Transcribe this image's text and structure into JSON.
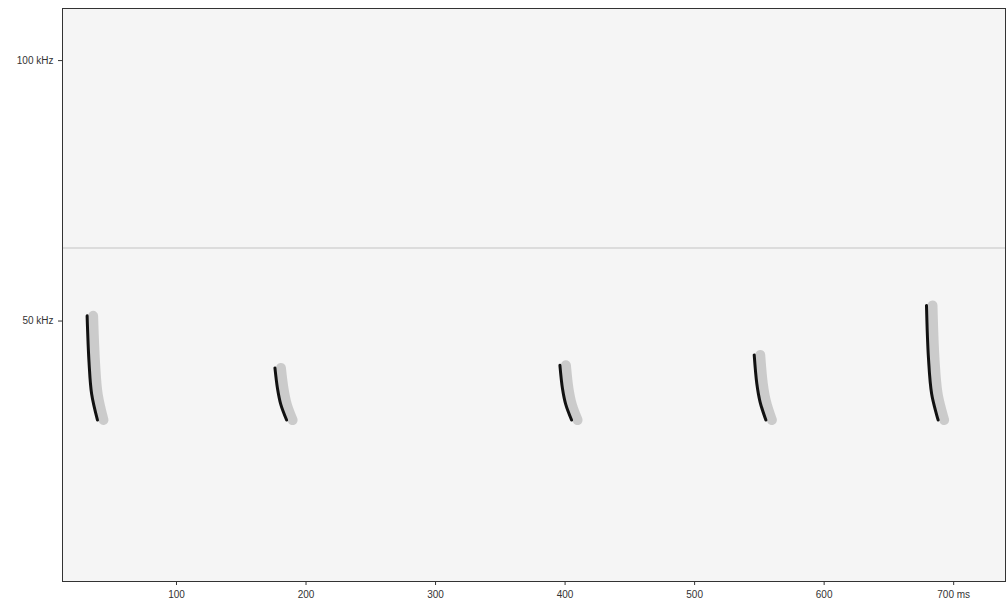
{
  "chart_data": {
    "type": "spectrogram",
    "xlim": [
      12,
      740
    ],
    "ylim": [
      0,
      110
    ],
    "xticks": [
      100,
      200,
      300,
      400,
      500,
      600,
      {
        "value": 700,
        "label": "700 ms"
      }
    ],
    "yticks": [
      {
        "value": 50,
        "label": "50 kHz"
      },
      {
        "value": 100,
        "label": "100 kHz"
      }
    ],
    "color": "#111111",
    "noise_band_khz": 64,
    "calls": [
      {
        "x": [
          31,
          32.5,
          34.5,
          39
        ],
        "y": [
          51,
          42,
          36,
          31
        ]
      },
      {
        "x": [
          176,
          178,
          180.5,
          185
        ],
        "y": [
          41,
          37,
          34,
          31
        ]
      },
      {
        "x": [
          396,
          398,
          400.5,
          405
        ],
        "y": [
          41.5,
          37,
          34,
          31
        ]
      },
      {
        "x": [
          546,
          548,
          550.5,
          555
        ],
        "y": [
          43.5,
          38,
          34.5,
          31
        ]
      },
      {
        "x": [
          679,
          680.5,
          683,
          688
        ],
        "y": [
          53,
          43,
          36,
          31
        ]
      }
    ]
  }
}
